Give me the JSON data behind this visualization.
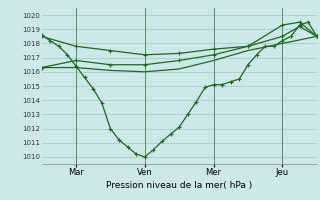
{
  "xlabel": "Pression niveau de la mer( hPa )",
  "ylim": [
    1009.5,
    1020.5
  ],
  "yticks": [
    1010,
    1011,
    1012,
    1013,
    1014,
    1015,
    1016,
    1017,
    1018,
    1019,
    1020
  ],
  "bg_color": "#cce8e8",
  "plot_bg_color": "#cce8e8",
  "line_color": "#1a6b1a",
  "grid_color": "#b0d0d0",
  "xtick_labels": [
    "Mar",
    "Ven",
    "Mer",
    "Jeu"
  ],
  "xtick_positions": [
    12,
    36,
    60,
    84
  ],
  "x_vlines": [
    12,
    36,
    60,
    84
  ],
  "xlim": [
    0,
    96
  ],
  "series1_x": [
    0,
    3,
    6,
    9,
    12,
    15,
    18,
    21,
    24,
    27,
    30,
    33,
    36,
    39,
    42,
    45,
    48,
    51,
    54,
    57,
    60,
    63,
    66,
    69,
    72,
    75,
    78,
    81,
    84,
    87,
    90,
    93,
    96
  ],
  "series1_y": [
    1018.6,
    1018.2,
    1017.8,
    1017.2,
    1016.4,
    1015.6,
    1014.8,
    1013.8,
    1012.0,
    1011.2,
    1010.7,
    1010.2,
    1010.0,
    1010.5,
    1011.1,
    1011.6,
    1012.1,
    1013.0,
    1013.9,
    1014.9,
    1015.1,
    1015.1,
    1015.3,
    1015.5,
    1016.5,
    1017.2,
    1017.8,
    1017.8,
    1018.2,
    1018.5,
    1019.3,
    1019.5,
    1018.5
  ],
  "series2_x": [
    0,
    12,
    24,
    36,
    48,
    60,
    72,
    84,
    96
  ],
  "series2_y": [
    1016.3,
    1016.3,
    1016.1,
    1016.0,
    1016.2,
    1016.8,
    1017.5,
    1018.0,
    1018.5
  ],
  "series3_x": [
    0,
    12,
    24,
    36,
    48,
    60,
    72,
    84,
    90,
    96
  ],
  "series3_y": [
    1016.3,
    1016.8,
    1016.5,
    1016.5,
    1016.8,
    1017.2,
    1017.8,
    1018.5,
    1019.2,
    1018.5
  ],
  "series4_x": [
    0,
    12,
    24,
    36,
    48,
    60,
    72,
    84,
    90,
    96
  ],
  "series4_y": [
    1018.5,
    1017.8,
    1017.5,
    1017.2,
    1017.3,
    1017.6,
    1017.8,
    1019.3,
    1019.5,
    1018.5
  ]
}
